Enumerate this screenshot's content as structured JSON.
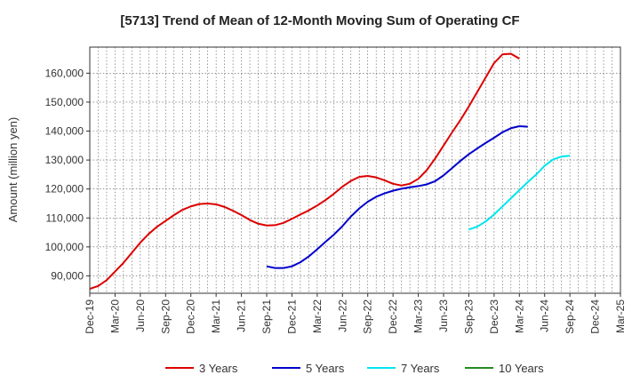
{
  "chart_data": {
    "type": "line",
    "title": "[5713]  Trend of Mean of 12-Month Moving Sum of Operating CF",
    "xlabel": "",
    "ylabel": "Amount (million yen)",
    "ylim": [
      84000,
      169000
    ],
    "yticks": [
      90000,
      100000,
      110000,
      120000,
      130000,
      140000,
      150000,
      160000
    ],
    "ytick_labels": [
      "90,000",
      "100,000",
      "110,000",
      "120,000",
      "130,000",
      "140,000",
      "150,000",
      "160,000"
    ],
    "x_tick_labels": [
      "Dec-19",
      "Mar-20",
      "Jun-20",
      "Sep-20",
      "Dec-20",
      "Mar-21",
      "Jun-21",
      "Sep-21",
      "Dec-21",
      "Mar-22",
      "Jun-22",
      "Sep-22",
      "Dec-22",
      "Mar-23",
      "Jun-23",
      "Sep-23",
      "Dec-23",
      "Mar-24",
      "Jun-24",
      "Sep-24",
      "Dec-24",
      "Mar-25"
    ],
    "x_months": "index 0 = Dec-19, one unit per month",
    "series": [
      {
        "name": "3 Years",
        "color": "#dd0000",
        "points": [
          [
            0,
            85500
          ],
          [
            1,
            86500
          ],
          [
            2,
            88500
          ],
          [
            3,
            91500
          ],
          [
            4,
            94500
          ],
          [
            5,
            98000
          ],
          [
            6,
            101500
          ],
          [
            7,
            104500
          ],
          [
            8,
            107000
          ],
          [
            9,
            109000
          ],
          [
            10,
            111000
          ],
          [
            11,
            112800
          ],
          [
            12,
            114000
          ],
          [
            13,
            114800
          ],
          [
            14,
            115000
          ],
          [
            15,
            114700
          ],
          [
            16,
            113800
          ],
          [
            17,
            112500
          ],
          [
            18,
            111000
          ],
          [
            19,
            109300
          ],
          [
            20,
            108000
          ],
          [
            21,
            107400
          ],
          [
            22,
            107500
          ],
          [
            23,
            108300
          ],
          [
            24,
            109700
          ],
          [
            25,
            111200
          ],
          [
            26,
            112600
          ],
          [
            27,
            114300
          ],
          [
            28,
            116200
          ],
          [
            29,
            118400
          ],
          [
            30,
            120800
          ],
          [
            31,
            122800
          ],
          [
            32,
            124200
          ],
          [
            33,
            124500
          ],
          [
            34,
            124000
          ],
          [
            35,
            123000
          ],
          [
            36,
            121800
          ],
          [
            37,
            121200
          ],
          [
            38,
            121800
          ],
          [
            39,
            123500
          ],
          [
            40,
            126500
          ],
          [
            41,
            130500
          ],
          [
            42,
            135000
          ],
          [
            43,
            139500
          ],
          [
            44,
            143800
          ],
          [
            45,
            148500
          ],
          [
            46,
            153500
          ],
          [
            47,
            158500
          ],
          [
            48,
            163500
          ],
          [
            49,
            166500
          ],
          [
            50,
            166700
          ],
          [
            51,
            165000
          ]
        ]
      },
      {
        "name": "5 Years",
        "color": "#0000cc",
        "points": [
          [
            21,
            93300
          ],
          [
            22,
            92700
          ],
          [
            23,
            92700
          ],
          [
            24,
            93300
          ],
          [
            25,
            94700
          ],
          [
            26,
            96700
          ],
          [
            27,
            99200
          ],
          [
            28,
            101800
          ],
          [
            29,
            104300
          ],
          [
            30,
            107200
          ],
          [
            31,
            110500
          ],
          [
            32,
            113300
          ],
          [
            33,
            115600
          ],
          [
            34,
            117300
          ],
          [
            35,
            118500
          ],
          [
            36,
            119400
          ],
          [
            37,
            120100
          ],
          [
            38,
            120600
          ],
          [
            39,
            121000
          ],
          [
            40,
            121600
          ],
          [
            41,
            122700
          ],
          [
            42,
            124700
          ],
          [
            43,
            127200
          ],
          [
            44,
            129700
          ],
          [
            45,
            132000
          ],
          [
            46,
            134000
          ],
          [
            47,
            135900
          ],
          [
            48,
            137700
          ],
          [
            49,
            139600
          ],
          [
            50,
            141000
          ],
          [
            51,
            141700
          ],
          [
            52,
            141500
          ]
        ]
      },
      {
        "name": "7 Years",
        "color": "#00e5ee",
        "points": [
          [
            45,
            106000
          ],
          [
            46,
            107000
          ],
          [
            47,
            108800
          ],
          [
            48,
            111200
          ],
          [
            49,
            114000
          ],
          [
            50,
            116800
          ],
          [
            51,
            119600
          ],
          [
            52,
            122400
          ],
          [
            53,
            125000
          ],
          [
            54,
            128000
          ],
          [
            55,
            130200
          ],
          [
            56,
            131200
          ],
          [
            57,
            131500
          ]
        ]
      },
      {
        "name": "10 Years",
        "color": "#228b22",
        "points": []
      }
    ],
    "legend_position": "bottom",
    "grid": true
  }
}
